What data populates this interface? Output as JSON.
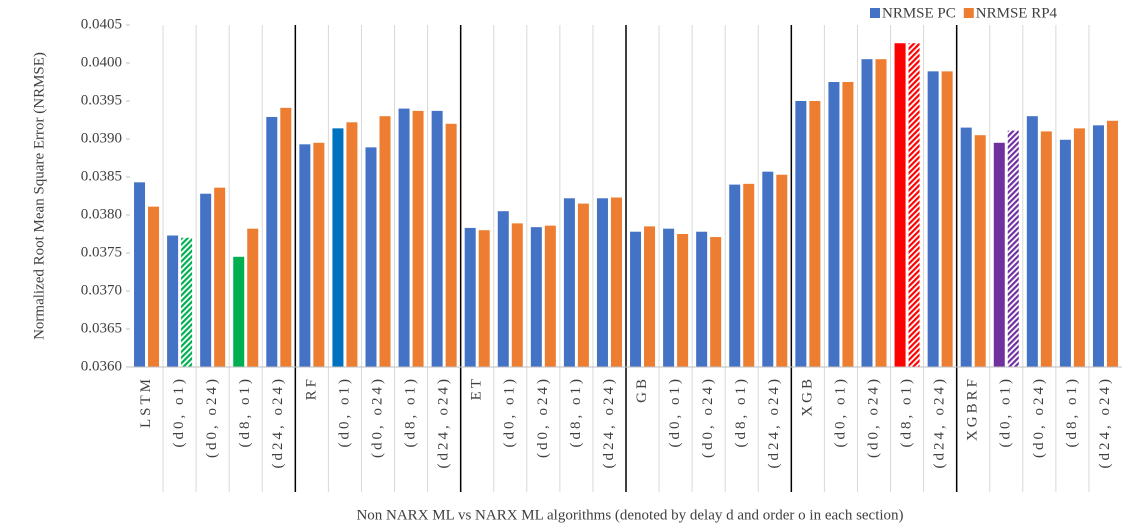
{
  "chart_data": {
    "type": "bar",
    "y_label": "Normalized Root Mean Square Error (NRMSE)",
    "x_label": "Non NARX ML vs NARX ML algorithms (denoted by delay d and order o in each section)",
    "categories": [
      "LSTM",
      "(d0, o1)",
      "(d0, o24)",
      "(d8, o1)",
      "(d24, o24)",
      "RF",
      "(d0, o1)",
      "(d0, o24)",
      "(d8, o1)",
      "(d24, o24)",
      "ET",
      "(d0, o1)",
      "(d0, o24)",
      "(d8, o1)",
      "(d24, o24)",
      "GB",
      "(d0, o1)",
      "(d0, o24)",
      "(d8, o1)",
      "(d24, o24)",
      "XGB",
      "(d0, o1)",
      "(d0, o24)",
      "(d8, o1)",
      "(d24, o24)",
      "XGBRF",
      "(d0, o1)",
      "(d0, o24)",
      "(d8, o1)",
      "(d24, o24)"
    ],
    "series": [
      {
        "name": "NRMSE PC",
        "color": "#4472c4",
        "values": [
          0.03843,
          0.03773,
          0.03828,
          0.03745,
          0.03929,
          0.03893,
          0.03914,
          0.03889,
          0.0394,
          0.03937,
          0.03783,
          0.03805,
          0.03784,
          0.03822,
          0.03822,
          0.03778,
          0.03782,
          0.03778,
          0.0384,
          0.03857,
          0.0395,
          0.03975,
          0.04005,
          0.04026,
          0.03989,
          0.03915,
          0.03895,
          0.0393,
          0.03899,
          0.03918
        ]
      },
      {
        "name": "NRMSE RP4",
        "color": "#ed7d31",
        "values": [
          0.03811,
          0.0377,
          0.03836,
          0.03782,
          0.03941,
          0.03895,
          0.03922,
          0.0393,
          0.03937,
          0.0392,
          0.0378,
          0.03789,
          0.03786,
          0.03815,
          0.03823,
          0.03785,
          0.03775,
          0.03771,
          0.03841,
          0.03853,
          0.0395,
          0.03975,
          0.04005,
          0.04026,
          0.03989,
          0.03905,
          0.03911,
          0.0391,
          0.03914,
          0.03924
        ]
      }
    ],
    "highlights": [
      {
        "series": 1,
        "index": 1,
        "color": "#00b050",
        "pattern": "hatch"
      },
      {
        "series": 0,
        "index": 3,
        "color": "#00b050",
        "pattern": "solid"
      },
      {
        "series": 0,
        "index": 6,
        "color": "#0070c0",
        "pattern": "solid"
      },
      {
        "series": 0,
        "index": 23,
        "color": "#ff0000",
        "pattern": "solid"
      },
      {
        "series": 1,
        "index": 23,
        "color": "#ff0000",
        "pattern": "hatch"
      },
      {
        "series": 0,
        "index": 26,
        "color": "#7030a0",
        "pattern": "solid"
      },
      {
        "series": 1,
        "index": 26,
        "color": "#7030a0",
        "pattern": "hatch"
      }
    ],
    "group_size": 5,
    "ylim": [
      0.036,
      0.0405
    ],
    "yticks": [
      {
        "value": 0.036,
        "label": "0.0360"
      },
      0.0365,
      {
        "value": 0.037,
        "label": "0.0370"
      },
      0.0375,
      {
        "value": 0.038,
        "label": "0.0380"
      },
      0.0385,
      {
        "value": 0.039,
        "label": "0.0390"
      },
      0.0395,
      {
        "value": 0.04,
        "label": "0.0400"
      },
      0.0405
    ],
    "legend": "top-right"
  }
}
